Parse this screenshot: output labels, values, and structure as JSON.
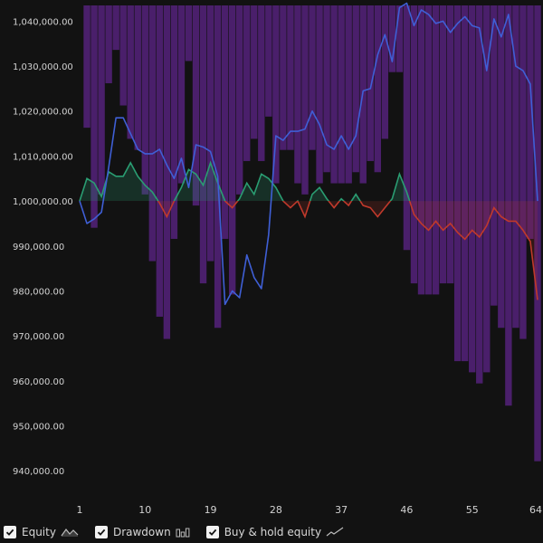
{
  "chart_data": {
    "type": "line",
    "x_ticks": [
      1,
      10,
      19,
      28,
      37,
      46,
      55,
      64
    ],
    "y_ticks": [
      940000,
      950000,
      960000,
      970000,
      980000,
      990000,
      1000000,
      1010000,
      1020000,
      1030000,
      1040000
    ],
    "y_tick_labels": [
      "940,000.00",
      "950,000.00",
      "960,000.00",
      "970,000.00",
      "980,000.00",
      "990,000.00",
      "1,000,000.00",
      "1,010,000.00",
      "1,020,000.00",
      "1,030,000.00",
      "1,040,000.00"
    ],
    "xlim": [
      1,
      64
    ],
    "ylim": [
      935000,
      1043500
    ],
    "baseline": 1000000,
    "x": [
      1,
      2,
      3,
      4,
      5,
      6,
      7,
      8,
      9,
      10,
      11,
      12,
      13,
      14,
      15,
      16,
      17,
      18,
      19,
      20,
      21,
      22,
      23,
      24,
      25,
      26,
      27,
      28,
      29,
      30,
      31,
      32,
      33,
      34,
      35,
      36,
      37,
      38,
      39,
      40,
      41,
      42,
      43,
      44,
      45,
      46,
      47,
      48,
      49,
      50,
      51,
      52,
      53,
      54,
      55,
      56,
      57,
      58,
      59,
      60,
      61,
      62,
      63,
      64
    ],
    "series": [
      {
        "name": "Equity",
        "color_above": "#2a9d72",
        "color_below": "#c0392b",
        "values": [
          1000000,
          1005000,
          1004000,
          1001000,
          1006500,
          1005500,
          1005500,
          1008500,
          1005500,
          1003500,
          1002000,
          999500,
          996500,
          1000000,
          1003000,
          1007000,
          1006000,
          1003500,
          1008500,
          1004000,
          1000000,
          998500,
          1000500,
          1004000,
          1001500,
          1006000,
          1005000,
          1003000,
          1000000,
          998500,
          1000000,
          996500,
          1001500,
          1003000,
          1000500,
          998500,
          1000500,
          999000,
          1001500,
          999000,
          998500,
          996500,
          998500,
          1000500,
          1006000,
          1002000,
          997000,
          995000,
          993500,
          995500,
          993500,
          995000,
          993000,
          991500,
          993500,
          992000,
          994500,
          998500,
          996500,
          995500,
          995500,
          993500,
          991000,
          978000
        ]
      },
      {
        "name": "Buy & hold equity",
        "color": "#3f5fd6",
        "values": [
          1000000,
          995000,
          996000,
          997500,
          1007500,
          1018500,
          1018500,
          1015000,
          1011500,
          1010500,
          1010500,
          1011500,
          1008000,
          1005000,
          1009500,
          1003000,
          1012500,
          1012000,
          1011000,
          1005500,
          977000,
          980000,
          978500,
          988000,
          983000,
          980500,
          992500,
          1014500,
          1013500,
          1015500,
          1015500,
          1016000,
          1020000,
          1017000,
          1012500,
          1011500,
          1014500,
          1011500,
          1014500,
          1024500,
          1025000,
          1032500,
          1037000,
          1031000,
          1043000,
          1044000,
          1039000,
          1042500,
          1041500,
          1039500,
          1040000,
          1037500,
          1039500,
          1041000,
          1039000,
          1038500,
          1029000,
          1040500,
          1036500,
          1041500,
          1030000,
          1029000,
          1026000,
          1000000
        ]
      },
      {
        "name": "Drawdown",
        "type": "bar",
        "color": "#4a1f6b",
        "values": [
          0,
          -1.1,
          -2.0,
          -1.7,
          -0.7,
          -0.4,
          -0.9,
          -1.2,
          -1.3,
          -1.7,
          -2.3,
          -2.8,
          -3.0,
          -2.1,
          -1.6,
          -0.5,
          -1.8,
          -2.5,
          -2.3,
          -2.9,
          -2.1,
          -2.6,
          -1.7,
          -1.4,
          -1.2,
          -1.4,
          -1.0,
          -1.6,
          -1.3,
          -1.3,
          -1.6,
          -1.7,
          -1.3,
          -1.6,
          -1.5,
          -1.6,
          -1.6,
          -1.6,
          -1.5,
          -1.6,
          -1.4,
          -1.5,
          -1.2,
          -0.6,
          -0.6,
          -2.2,
          -2.5,
          -2.6,
          -2.6,
          -2.6,
          -2.5,
          -2.5,
          -3.2,
          -3.2,
          -3.3,
          -3.4,
          -3.3,
          -2.7,
          -2.9,
          -3.6,
          -2.9,
          -3.0,
          -2.1,
          -4.1
        ]
      }
    ],
    "legend": [
      {
        "label": "Equity",
        "icon": "area-line-icon",
        "checked": true
      },
      {
        "label": "Drawdown",
        "icon": "bars-icon",
        "checked": true
      },
      {
        "label": "Buy & hold equity",
        "icon": "line-icon",
        "checked": true
      }
    ]
  }
}
